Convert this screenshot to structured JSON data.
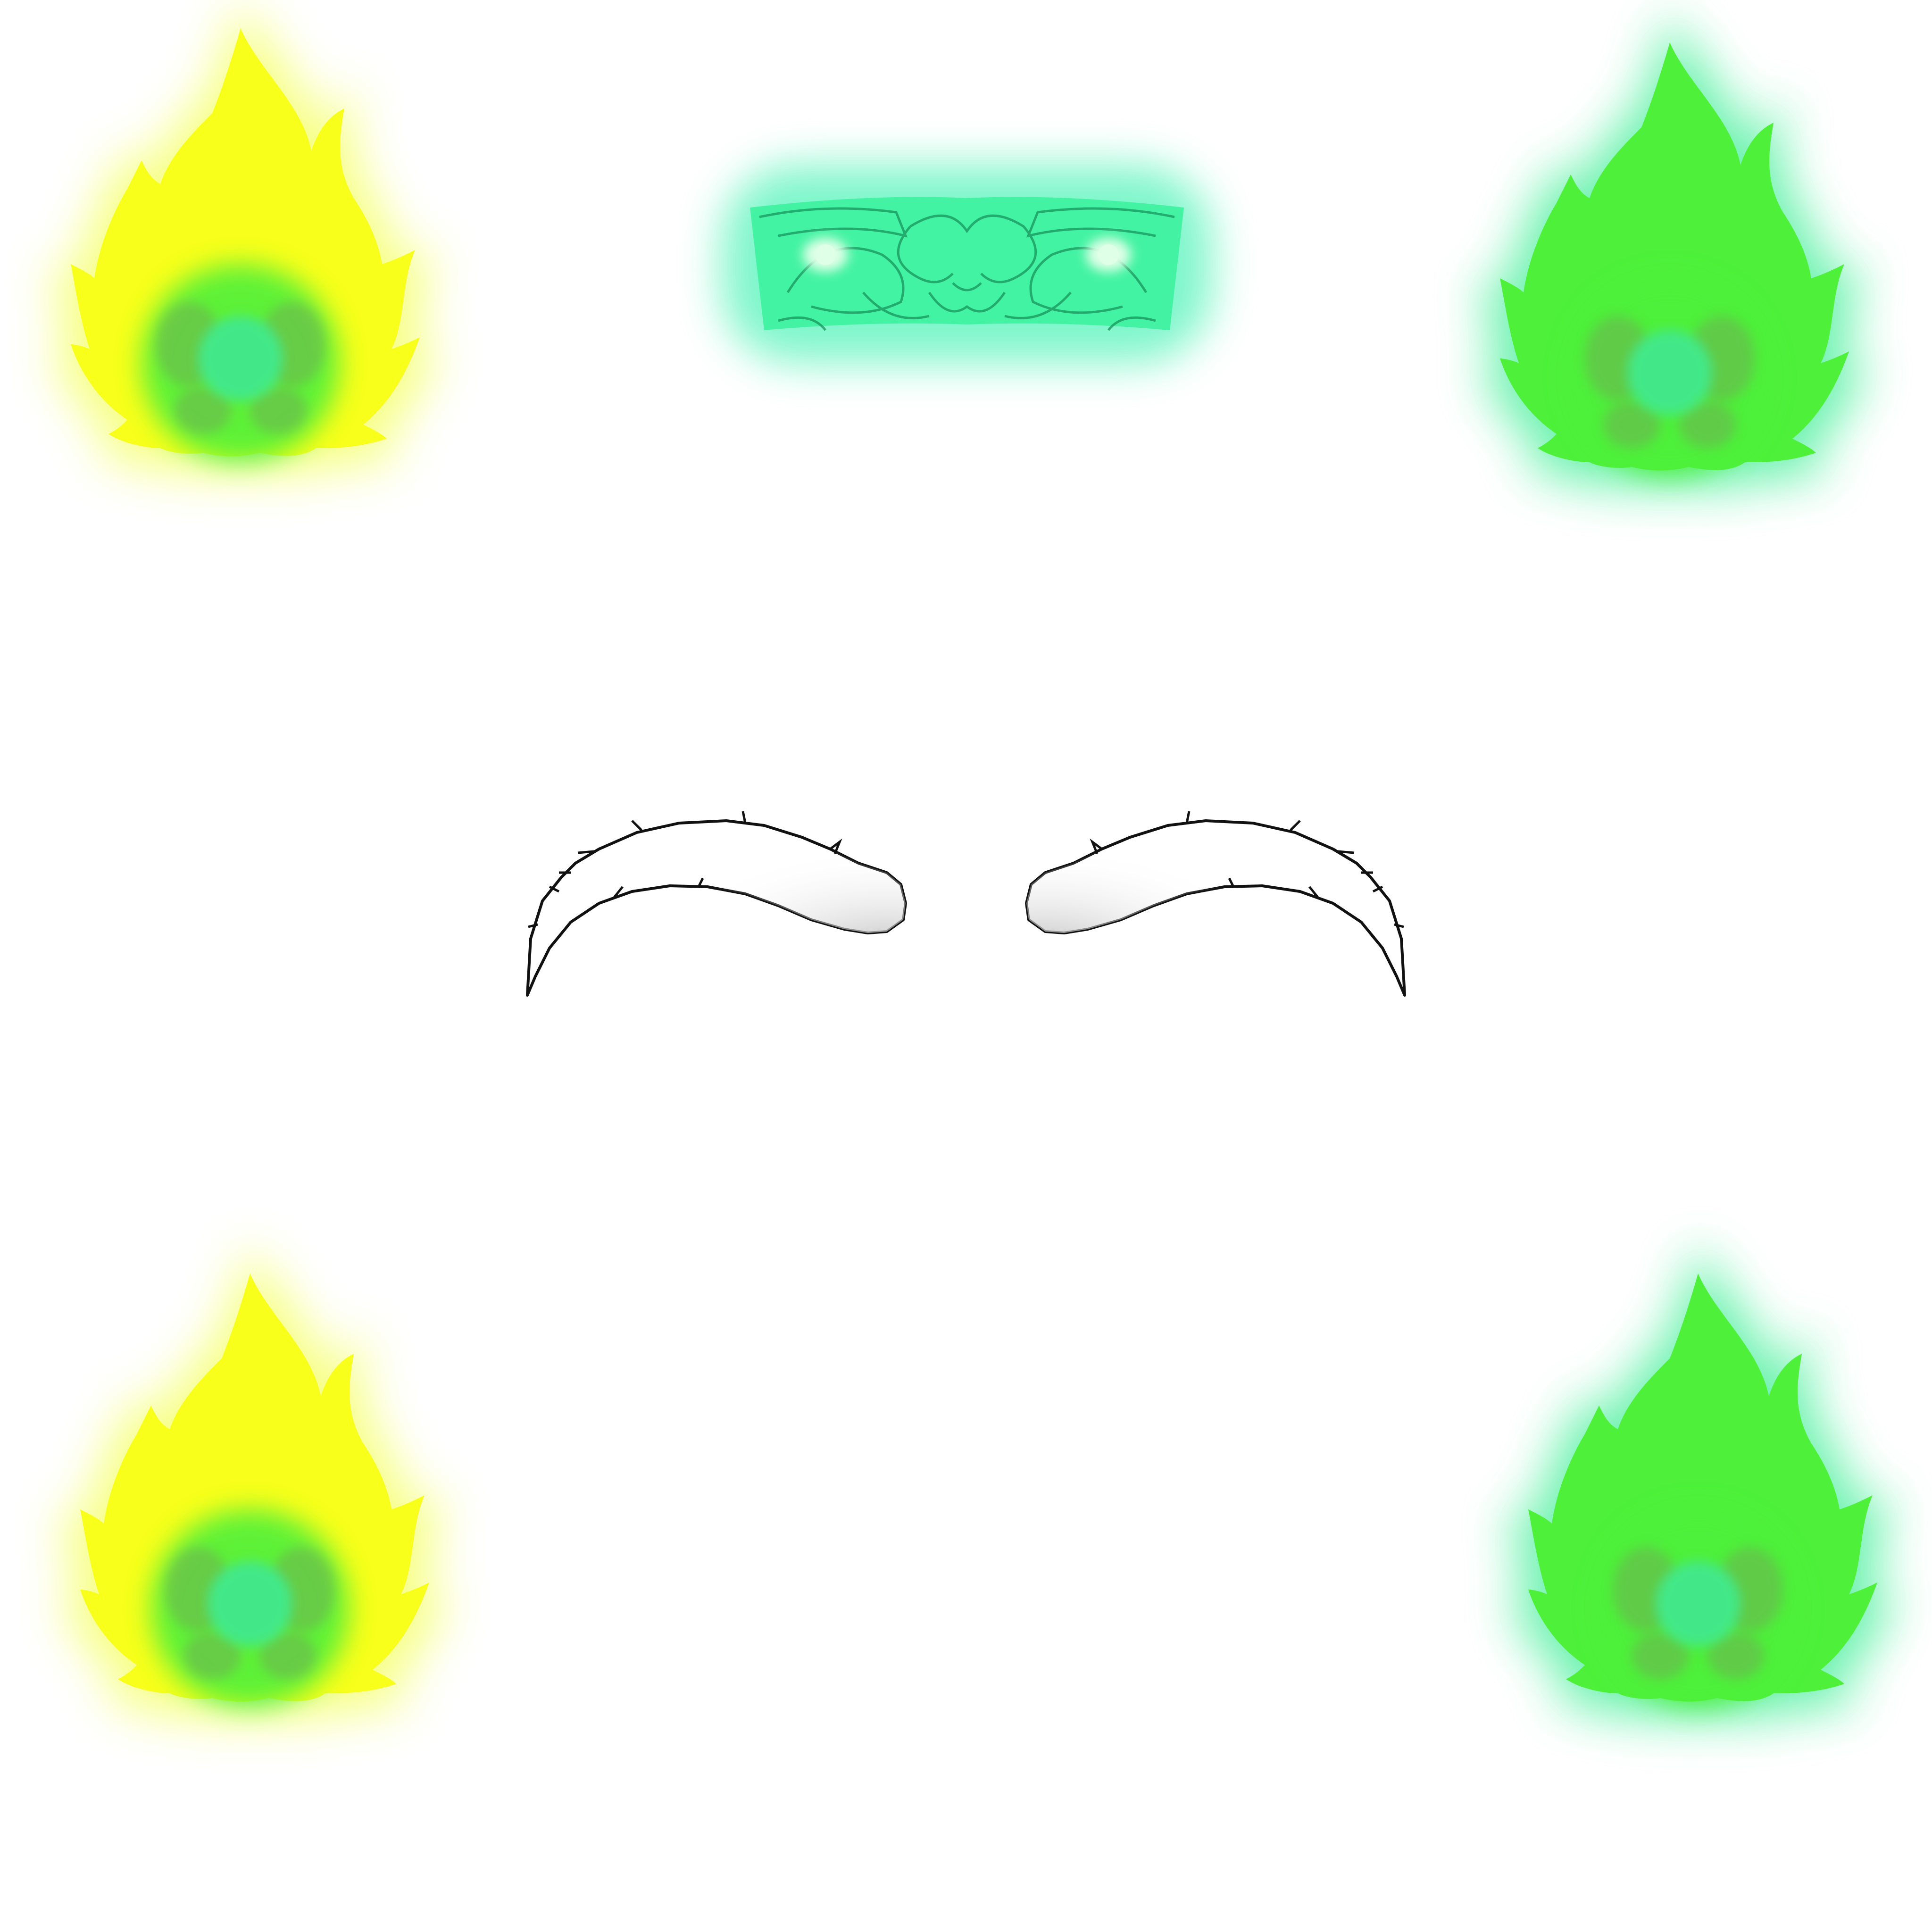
{
  "canvas": {
    "background": "#ffffff"
  },
  "colors": {
    "yellow_flame": "#f8ff1a",
    "yellow_glow": "#f4ff6a",
    "green_flame": "#4ef03a",
    "green_glow": "#52f0a0",
    "orb_core": "#43e888",
    "orb_shadow": "#6fae52",
    "mask_fill": "#3ff2a0",
    "mask_glow": "#6ff5c5",
    "mask_line": "#1c9a62",
    "mask_eye": "#dfffe6",
    "brow_fill": "#ffffff",
    "brow_shade": "#bdbdbd",
    "brow_line": "#111111"
  },
  "elements": {
    "flame_top_left": {
      "icon": "yellow-flame-orb-icon"
    },
    "flame_top_right": {
      "icon": "green-flame-orb-icon"
    },
    "flame_bottom_left": {
      "icon": "yellow-flame-orb-icon"
    },
    "flame_bottom_right": {
      "icon": "green-flame-orb-icon"
    },
    "mask": {
      "icon": "glowing-mask-icon"
    },
    "brow_left": {
      "icon": "left-eyebrow-icon"
    },
    "brow_right": {
      "icon": "right-eyebrow-icon"
    }
  }
}
